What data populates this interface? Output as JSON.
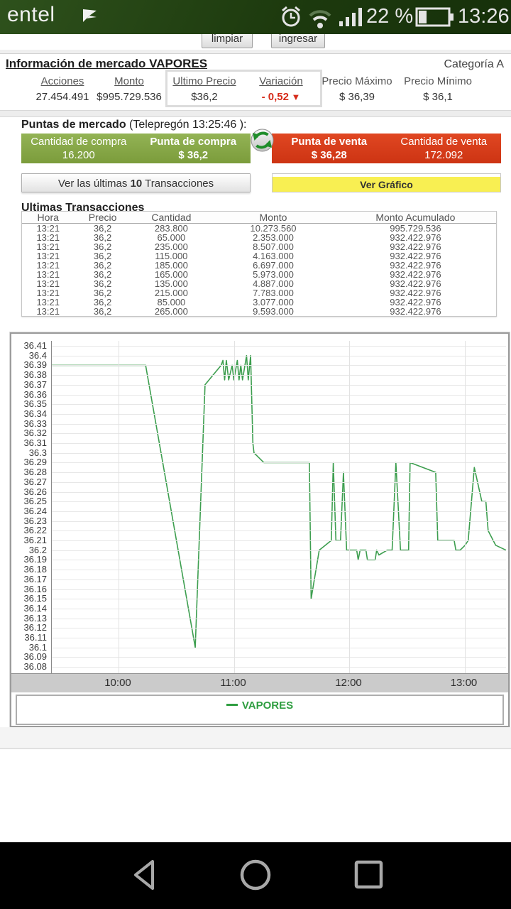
{
  "status_bar": {
    "carrier": "entel",
    "battery_percent": "22 %",
    "time": "13:26",
    "icons": [
      "entel-flag-icon",
      "alarm-icon",
      "wifi-icon",
      "signal-icon",
      "battery-icon"
    ]
  },
  "top_buttons": {
    "clear": "limpiar",
    "submit": "ingresar"
  },
  "market_info": {
    "title": "Información de mercado VAPORES",
    "category": "Categoría A",
    "columns": [
      {
        "label": "Acciones",
        "value": "27.454.491",
        "underline": true,
        "negative": false
      },
      {
        "label": "Monto",
        "value": "$995.729.536",
        "underline": true,
        "negative": false
      },
      {
        "label": "Ultimo Precio",
        "value": "$36,2",
        "underline": true,
        "negative": false
      },
      {
        "label": "Variación",
        "value": "- 0,52",
        "underline": true,
        "negative": true,
        "arrow": "▼"
      },
      {
        "label": "Precio Máximo",
        "value": "$ 36,39",
        "underline": false,
        "negative": false
      },
      {
        "label": "Precio Mínimo",
        "value": "$ 36,1",
        "underline": false,
        "negative": false
      }
    ]
  },
  "puntas": {
    "heading_bold": "Puntas de mercado",
    "heading_rest": " (Telepregón 13:25:46 ):",
    "buy": {
      "qty_label": "Cantidad de compra",
      "qty": "16.200",
      "price_label": "Punta de compra",
      "price": "$ 36,2"
    },
    "sell": {
      "price_label": "Punta de venta",
      "price": "$ 36,28",
      "qty_label": "Cantidad de venta",
      "qty": "172.092"
    },
    "transactions_button": {
      "prefix": "Ver las últimas ",
      "count": "10",
      "suffix": " Transacciones"
    },
    "graph_button": "Ver Gráfico"
  },
  "transactions": {
    "title": "Ultimas Transacciones",
    "headers": [
      "Hora",
      "Precio",
      "Cantidad",
      "Monto",
      "Monto Acumulado"
    ],
    "rows": [
      [
        "13:21",
        "36,2",
        "283.800",
        "10.273.560",
        "995.729.536"
      ],
      [
        "13:21",
        "36,2",
        "65.000",
        "2.353.000",
        "932.422.976"
      ],
      [
        "13:21",
        "36,2",
        "235.000",
        "8.507.000",
        "932.422.976"
      ],
      [
        "13:21",
        "36,2",
        "115.000",
        "4.163.000",
        "932.422.976"
      ],
      [
        "13:21",
        "36,2",
        "185.000",
        "6.697.000",
        "932.422.976"
      ],
      [
        "13:21",
        "36,2",
        "165.000",
        "5.973.000",
        "932.422.976"
      ],
      [
        "13:21",
        "36,2",
        "135.000",
        "4.887.000",
        "932.422.976"
      ],
      [
        "13:21",
        "36,2",
        "215.000",
        "7.783.000",
        "932.422.976"
      ],
      [
        "13:21",
        "36,2",
        "85.000",
        "3.077.000",
        "932.422.976"
      ],
      [
        "13:21",
        "36,2",
        "265.000",
        "9.593.000",
        "932.422.976"
      ]
    ]
  },
  "chart_data": {
    "type": "line",
    "title": "",
    "legend": "VAPORES",
    "legend_position": "bottom",
    "grid": true,
    "line_color": "#3d9e4f",
    "ylim": [
      36.08,
      36.41
    ],
    "y_step": 0.01,
    "y_ticks": [
      "36.41",
      "36.4",
      "36.39",
      "36.38",
      "36.37",
      "36.36",
      "36.35",
      "36.34",
      "36.33",
      "36.32",
      "36.31",
      "36.3",
      "36.29",
      "36.28",
      "36.27",
      "36.26",
      "36.25",
      "36.24",
      "36.23",
      "36.22",
      "36.21",
      "36.2",
      "36.19",
      "36.18",
      "36.17",
      "36.16",
      "36.15",
      "36.14",
      "36.13",
      "36.12",
      "36.11",
      "36.1",
      "36.09",
      "36.08"
    ],
    "x_ticks": [
      "10:00",
      "11:00",
      "12:00",
      "13:00"
    ],
    "x_tick_hours": [
      10,
      11,
      12,
      13
    ],
    "xlim_hours": [
      9.42,
      13.43
    ],
    "series": [
      {
        "name": "VAPORES",
        "points": [
          [
            9.42,
            36.39
          ],
          [
            10.235,
            36.39
          ],
          [
            10.665,
            36.1
          ],
          [
            10.75,
            36.37
          ],
          [
            10.89,
            36.39
          ],
          [
            10.905,
            36.395
          ],
          [
            10.92,
            36.375
          ],
          [
            10.935,
            36.395
          ],
          [
            10.955,
            36.375
          ],
          [
            10.985,
            36.39
          ],
          [
            11.0,
            36.375
          ],
          [
            11.03,
            36.395
          ],
          [
            11.045,
            36.375
          ],
          [
            11.06,
            36.39
          ],
          [
            11.075,
            36.375
          ],
          [
            11.11,
            36.4
          ],
          [
            11.125,
            36.375
          ],
          [
            11.145,
            36.4
          ],
          [
            11.165,
            36.31
          ],
          [
            11.175,
            36.3
          ],
          [
            11.26,
            36.29
          ],
          [
            11.655,
            36.29
          ],
          [
            11.67,
            36.15
          ],
          [
            11.74,
            36.2
          ],
          [
            11.845,
            36.21
          ],
          [
            11.862,
            36.29
          ],
          [
            11.885,
            36.21
          ],
          [
            11.925,
            36.21
          ],
          [
            11.95,
            36.28
          ],
          [
            11.978,
            36.2
          ],
          [
            12.065,
            36.2
          ],
          [
            12.078,
            36.19
          ],
          [
            12.095,
            36.2
          ],
          [
            12.145,
            36.2
          ],
          [
            12.158,
            36.19
          ],
          [
            12.225,
            36.19
          ],
          [
            12.238,
            36.2
          ],
          [
            12.258,
            36.195
          ],
          [
            12.33,
            36.2
          ],
          [
            12.372,
            36.2
          ],
          [
            12.405,
            36.29
          ],
          [
            12.445,
            36.2
          ],
          [
            12.515,
            36.2
          ],
          [
            12.528,
            36.29
          ],
          [
            12.75,
            36.28
          ],
          [
            12.768,
            36.21
          ],
          [
            12.91,
            36.21
          ],
          [
            12.925,
            36.2
          ],
          [
            12.962,
            36.2
          ],
          [
            13.005,
            36.205
          ],
          [
            13.032,
            36.21
          ],
          [
            13.085,
            36.285
          ],
          [
            13.15,
            36.25
          ],
          [
            13.185,
            36.25
          ],
          [
            13.205,
            36.22
          ],
          [
            13.27,
            36.205
          ],
          [
            13.43,
            36.2
          ]
        ]
      }
    ]
  },
  "nav_bar": {
    "icons": [
      "back-icon",
      "home-icon",
      "recents-icon"
    ]
  },
  "colors": {
    "statusbar_bg": "#1d3a0e",
    "buy_box": "#86a845",
    "sell_box": "#d43d1b",
    "graph_button_bg": "#f8ef52",
    "negative": "#d62b1a",
    "chart_line": "#3d9e4f",
    "legend_text": "#2f9e41"
  }
}
